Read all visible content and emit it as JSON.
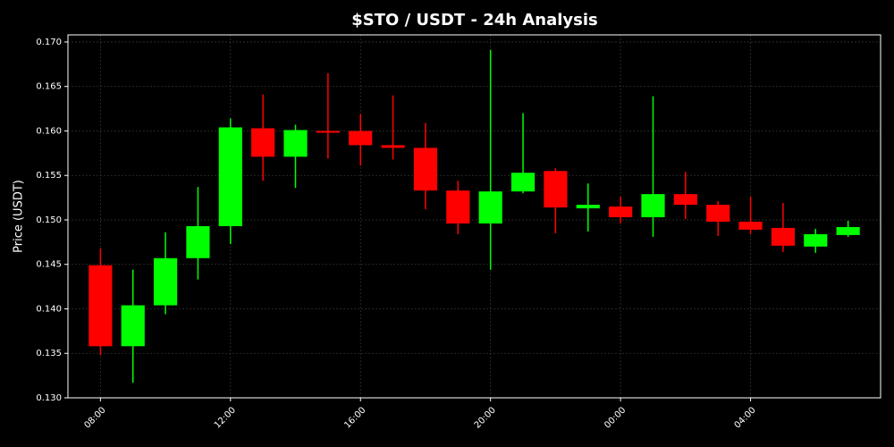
{
  "chart_data": {
    "type": "candlestick",
    "title": "$STO / USDT - 24h Analysis",
    "y_label": "Price (USDT)",
    "categories": [
      "08:00",
      null,
      null,
      null,
      "12:00",
      null,
      null,
      null,
      "16:00",
      null,
      null,
      null,
      "20:00",
      null,
      null,
      null,
      "00:00",
      null,
      null,
      null,
      "04:00",
      null,
      null,
      null
    ],
    "open": [
      0.1449,
      0.1358,
      0.1404,
      0.1457,
      0.1493,
      0.1603,
      0.1571,
      0.16,
      0.16,
      0.1584,
      0.1581,
      0.1533,
      0.1496,
      0.1532,
      0.1555,
      0.1513,
      0.1515,
      0.1503,
      0.1529,
      0.1517,
      0.1498,
      0.1491,
      0.147,
      0.1483
    ],
    "high": [
      0.1468,
      0.1444,
      0.1486,
      0.1537,
      0.1614,
      0.1641,
      0.1607,
      0.1665,
      0.1619,
      0.164,
      0.1609,
      0.1544,
      0.1691,
      0.162,
      0.1558,
      0.1541,
      0.1526,
      0.1639,
      0.1554,
      0.1521,
      0.1526,
      0.1519,
      0.149,
      0.1499
    ],
    "low": [
      0.1348,
      0.1317,
      0.1394,
      0.1433,
      0.1473,
      0.1544,
      0.1536,
      0.1569,
      0.1561,
      0.1568,
      0.1512,
      0.1484,
      0.1444,
      0.153,
      0.1485,
      0.1487,
      0.1496,
      0.1481,
      0.1501,
      0.1482,
      0.1484,
      0.1464,
      0.1463,
      0.1481
    ],
    "close": [
      0.1358,
      0.1404,
      0.1457,
      0.1493,
      0.1604,
      0.1571,
      0.1601,
      0.1598,
      0.1584,
      0.1581,
      0.1533,
      0.1496,
      0.1532,
      0.1553,
      0.1514,
      0.1517,
      0.1503,
      0.1529,
      0.1517,
      0.1498,
      0.1489,
      0.1471,
      0.1484,
      0.1492
    ],
    "up_color": "#00ff00",
    "down_color": "#ff0000",
    "ylim": [
      0.13,
      0.1708
    ],
    "yticks": [
      {
        "value": 0.13,
        "label": "0.130"
      },
      0.135,
      {
        "value": 0.14,
        "label": "0.140"
      },
      0.145,
      {
        "value": 0.15,
        "label": "0.150"
      },
      0.155,
      {
        "value": 0.16,
        "label": "0.160"
      },
      0.165,
      {
        "value": 0.17,
        "label": "0.170"
      }
    ],
    "grid": true
  }
}
